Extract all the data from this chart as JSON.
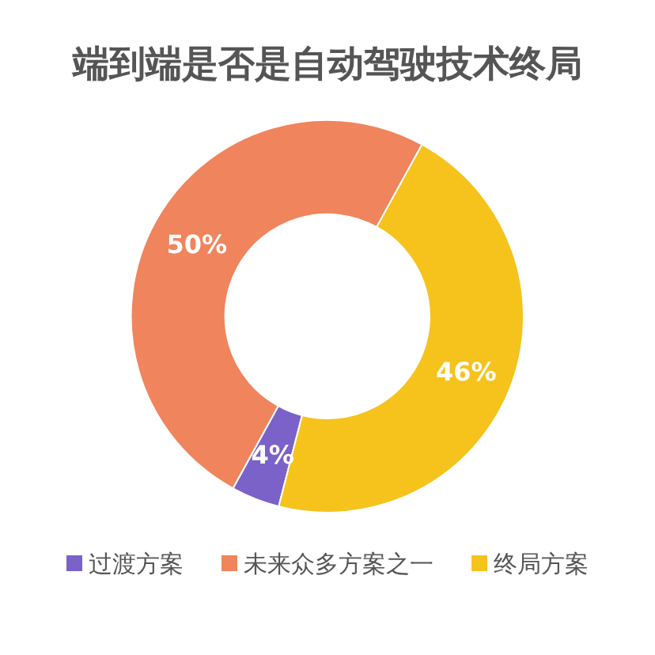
{
  "chart_data": {
    "type": "donut",
    "title": "端到端是否是自动驾驶技术终局",
    "categories": [
      "过渡方案",
      "未来众多方案之一",
      "终局方案"
    ],
    "values": [
      4,
      50,
      46
    ],
    "colors": [
      "#7a62c9",
      "#f0845c",
      "#f6c31c"
    ],
    "value_labels": [
      "4%",
      "50%",
      "46%"
    ],
    "legend": "bottom"
  }
}
